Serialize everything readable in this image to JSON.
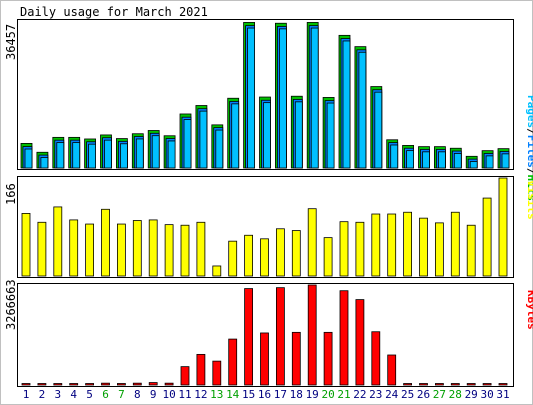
{
  "chart_data": [
    {
      "type": "bar",
      "title": "Daily usage for March 2021",
      "max_label": "36457",
      "ylim": [
        0,
        36457
      ],
      "legend": {
        "parts": [
          {
            "text": "Pages",
            "color": "#00C0FF"
          },
          {
            "text": "/",
            "color": "#000000"
          },
          {
            "text": "Files",
            "color": "#0080FF"
          },
          {
            "text": "/",
            "color": "#000000"
          },
          {
            "text": "Hits",
            "color": "#00C000"
          }
        ]
      },
      "categories": [
        "1",
        "2",
        "3",
        "4",
        "5",
        "6",
        "7",
        "8",
        "9",
        "10",
        "11",
        "12",
        "13",
        "14",
        "15",
        "16",
        "17",
        "18",
        "19",
        "20",
        "21",
        "22",
        "23",
        "24",
        "25",
        "26",
        "27",
        "28",
        "29",
        "30",
        "31"
      ],
      "weekend_days": [
        "6",
        "7",
        "13",
        "14",
        "20",
        "21",
        "27",
        "28"
      ],
      "series": [
        {
          "name": "Hits",
          "color": "#00C000",
          "values": [
            6100,
            3900,
            7600,
            7600,
            7200,
            8200,
            7300,
            8500,
            9300,
            8000,
            13400,
            15500,
            10700,
            17300,
            36100,
            17600,
            35900,
            17800,
            36100,
            17500,
            32900,
            30100,
            20200,
            7000,
            5600,
            5300,
            5300,
            4900,
            2900,
            4300,
            4800
          ]
        },
        {
          "name": "Files",
          "color": "#0080FF",
          "values": [
            5800,
            3700,
            7400,
            7400,
            7000,
            8000,
            7100,
            8300,
            9100,
            7800,
            13100,
            15200,
            10500,
            17000,
            35800,
            17300,
            35600,
            17500,
            35800,
            17200,
            32600,
            29800,
            19900,
            6800,
            5400,
            5100,
            5100,
            4700,
            2700,
            4100,
            4600
          ]
        },
        {
          "name": "Pages",
          "color": "#00C0FF",
          "values": [
            5700,
            3600,
            7300,
            7300,
            6900,
            7900,
            7000,
            8200,
            9000,
            7700,
            13000,
            15100,
            10400,
            16900,
            35700,
            17200,
            35500,
            17400,
            35700,
            17100,
            32500,
            29700,
            19800,
            6700,
            5300,
            5000,
            5000,
            4600,
            2600,
            4000,
            4500
          ]
        }
      ]
    },
    {
      "type": "bar",
      "max_label": "166",
      "ylim": [
        0,
        166
      ],
      "legend": {
        "parts": [
          {
            "text": "Visits",
            "color": "#FFFF00"
          }
        ]
      },
      "categories": [
        "1",
        "2",
        "3",
        "4",
        "5",
        "6",
        "7",
        "8",
        "9",
        "10",
        "11",
        "12",
        "13",
        "14",
        "15",
        "16",
        "17",
        "18",
        "19",
        "20",
        "21",
        "22",
        "23",
        "24",
        "25",
        "26",
        "27",
        "28",
        "29",
        "30",
        "31"
      ],
      "series": [
        {
          "name": "Visits",
          "color": "#FFFF00",
          "values": [
            106,
            91,
            117,
            95,
            88,
            113,
            88,
            94,
            95,
            87,
            86,
            91,
            17,
            59,
            69,
            63,
            80,
            77,
            114,
            65,
            92,
            91,
            105,
            105,
            108,
            98,
            90,
            108,
            86,
            132,
            166
          ]
        }
      ]
    },
    {
      "type": "bar",
      "max_label": "3266663",
      "ylim": [
        0,
        3266663
      ],
      "legend": {
        "parts": [
          {
            "text": "KBytes",
            "color": "#FF0000"
          }
        ]
      },
      "categories": [
        "1",
        "2",
        "3",
        "4",
        "5",
        "6",
        "7",
        "8",
        "9",
        "10",
        "11",
        "12",
        "13",
        "14",
        "15",
        "16",
        "17",
        "18",
        "19",
        "20",
        "21",
        "22",
        "23",
        "24",
        "25",
        "26",
        "27",
        "28",
        "29",
        "30",
        "31"
      ],
      "series": [
        {
          "name": "KBytes",
          "color": "#FF0000",
          "values": [
            20000,
            15000,
            25000,
            25000,
            25000,
            60000,
            25000,
            60000,
            80000,
            60000,
            600000,
            1000000,
            780000,
            1500000,
            3150000,
            1700000,
            3180000,
            1720000,
            3266663,
            1720000,
            3080000,
            2790000,
            1740000,
            980000,
            20000,
            20000,
            20000,
            20000,
            15000,
            20000,
            20000
          ]
        }
      ]
    }
  ],
  "colors": {
    "panel_bg": "#FFFFFF",
    "plot_border": "#000000",
    "weekday_label": "#000080",
    "weekend_label": "#00A000",
    "outer_bg": "#C0C0C0"
  }
}
